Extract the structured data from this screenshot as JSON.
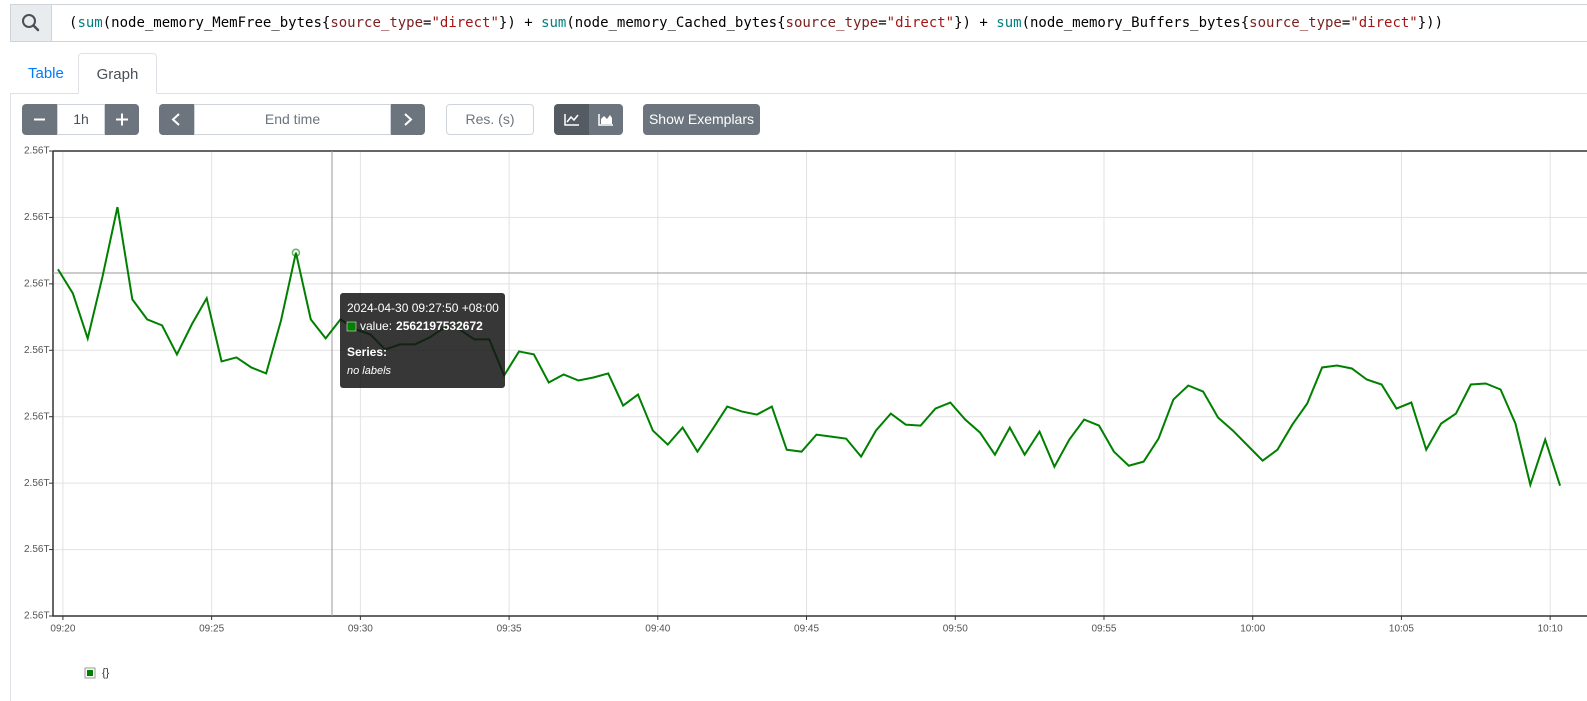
{
  "query": {
    "tokens": [
      {
        "text": "(",
        "color": "#000000"
      },
      {
        "text": "sum",
        "color": "#008080"
      },
      {
        "text": "(node_memory_MemFree_bytes{",
        "color": "#000000"
      },
      {
        "text": "source_type",
        "color": "#7a1f1f"
      },
      {
        "text": "=",
        "color": "#000000"
      },
      {
        "text": "\"direct\"",
        "color": "#a31515"
      },
      {
        "text": "}) + ",
        "color": "#000000"
      },
      {
        "text": "sum",
        "color": "#008080"
      },
      {
        "text": "(node_memory_Cached_bytes{",
        "color": "#000000"
      },
      {
        "text": "source_type",
        "color": "#7a1f1f"
      },
      {
        "text": "=",
        "color": "#000000"
      },
      {
        "text": "\"direct\"",
        "color": "#a31515"
      },
      {
        "text": "}) + ",
        "color": "#000000"
      },
      {
        "text": "sum",
        "color": "#008080"
      },
      {
        "text": "(node_memory_Buffers_bytes{",
        "color": "#000000"
      },
      {
        "text": "source_type",
        "color": "#7a1f1f"
      },
      {
        "text": "=",
        "color": "#000000"
      },
      {
        "text": "\"direct\"",
        "color": "#a31515"
      },
      {
        "text": "}))",
        "color": "#000000"
      }
    ]
  },
  "tabs": [
    "Table",
    "Graph"
  ],
  "controls": {
    "range": "1h",
    "end_time": "End time",
    "resolution": "Res. (s)",
    "exemplars": "Show Exemplars"
  },
  "tooltip": {
    "time": "2024-04-30 09:27:50 +08:00",
    "value_label": "value:",
    "series_label": "Series:",
    "series_value": "no labels"
  },
  "chart_data": {
    "type": "line",
    "x": [
      "09:19:50",
      "09:20:20",
      "09:20:50",
      "09:21:20",
      "09:21:50",
      "09:22:20",
      "09:22:50",
      "09:23:20",
      "09:23:50",
      "09:24:20",
      "09:24:50",
      "09:25:20",
      "09:25:50",
      "09:26:20",
      "09:26:50",
      "09:27:20",
      "09:27:50",
      "09:28:20",
      "09:28:50",
      "09:29:20",
      "09:29:50",
      "09:30:20",
      "09:30:50",
      "09:31:20",
      "09:31:50",
      "09:32:20",
      "09:32:50",
      "09:33:20",
      "09:33:50",
      "09:34:20",
      "09:34:50",
      "09:35:20",
      "09:35:50",
      "09:36:20",
      "09:36:50",
      "09:37:20",
      "09:37:50",
      "09:38:20",
      "09:38:50",
      "09:39:20",
      "09:39:50",
      "09:40:20",
      "09:40:50",
      "09:41:20",
      "09:41:50",
      "09:42:20",
      "09:42:50",
      "09:43:20",
      "09:43:50",
      "09:44:20",
      "09:44:50",
      "09:45:20",
      "09:45:50",
      "09:46:20",
      "09:46:50",
      "09:47:20",
      "09:47:50",
      "09:48:20",
      "09:48:50",
      "09:49:20",
      "09:49:50",
      "09:50:20",
      "09:50:50",
      "09:51:20",
      "09:51:50",
      "09:52:20",
      "09:52:50",
      "09:53:20",
      "09:53:50",
      "09:54:20",
      "09:54:50",
      "09:55:20",
      "09:55:50",
      "09:56:20",
      "09:56:50",
      "09:57:20",
      "09:57:50",
      "09:58:20",
      "09:58:50",
      "09:59:20",
      "09:59:50",
      "10:00:20",
      "10:00:50",
      "10:01:20",
      "10:01:50",
      "10:02:20",
      "10:02:50",
      "10:03:20",
      "10:03:50",
      "10:04:20",
      "10:04:50",
      "10:05:20",
      "10:05:50",
      "10:06:20",
      "10:06:50",
      "10:07:20",
      "10:07:50",
      "10:08:20",
      "10:08:50",
      "10:09:20",
      "10:09:50",
      "10:10:20"
    ],
    "series": [
      {
        "name": "{}",
        "color": "#008000",
        "values": [
          2562177600000,
          2562148600000,
          2562094300000,
          2562169100000,
          2562252400000,
          2562141400000,
          2562117200000,
          2562110000000,
          2562075000000,
          2562111200000,
          2562142600000,
          2562066600000,
          2562071400000,
          2562059300000,
          2562052100000,
          2562116000000,
          2562197532672,
          2562117200000,
          2562094300000,
          2562117200000,
          2562105200000,
          2562099100000,
          2562081000000,
          2562087100000,
          2562087100000,
          2562095500000,
          2562107600000,
          2562105200000,
          2562093100000,
          2562093100000,
          2562049700000,
          2562078600000,
          2562075000000,
          2562041200000,
          2562050900000,
          2562043600000,
          2562047200000,
          2562052100000,
          2562013400000,
          2562026700000,
          2561983300000,
          2561966400000,
          2561986900000,
          2561957900000,
          2561984500000,
          2562012200000,
          2562006200000,
          2562002600000,
          2562012200000,
          2561960300000,
          2561957900000,
          2561978400000,
          2561976000000,
          2561973600000,
          2561951900000,
          2561983300000,
          2562003800000,
          2561990500000,
          2561989300000,
          2562009800000,
          2562017100000,
          2561996600000,
          2561980900000,
          2561954300000,
          2561986900000,
          2561954300000,
          2561982100000,
          2561939800000,
          2561972400000,
          2561996600000,
          2561989300000,
          2561957900000,
          2561941000000,
          2561945900000,
          2561973600000,
          2562020700000,
          2562037600000,
          2562030300000,
          2561999000000,
          2561983300000,
          2561965200000,
          2561947100000,
          2561960300000,
          2561990500000,
          2562015900000,
          2562059300000,
          2562061700000,
          2562058100000,
          2562044800000,
          2562038800000,
          2562009800000,
          2562017100000,
          2561960300000,
          2561991700000,
          2562003800000,
          2562038800000,
          2562040000000,
          2562032800000,
          2561991700000,
          2561918100000,
          2561972400000,
          2561916900000
        ]
      }
    ],
    "xlim": [
      "09:19:40",
      "10:10:36"
    ],
    "xticks": [
      "09:20",
      "09:25",
      "09:30",
      "09:35",
      "09:40",
      "09:45",
      "09:50",
      "09:55",
      "10:00",
      "10:05",
      "10:10"
    ],
    "ylim": [
      2561760000000,
      2562320000000
    ],
    "yticks": [
      {
        "value": 2561760000000,
        "label": "2.56T"
      },
      {
        "value": 2561840000000,
        "label": "2.56T"
      },
      {
        "value": 2561920000000,
        "label": "2.56T"
      },
      {
        "value": 2562000000000,
        "label": "2.56T"
      },
      {
        "value": 2562080000000,
        "label": "2.56T"
      },
      {
        "value": 2562160000000,
        "label": "2.56T"
      },
      {
        "value": 2562240000000,
        "label": "2.56T"
      },
      {
        "value": 2562320000000,
        "label": "2.56T"
      }
    ],
    "grid": true,
    "legend": "bottom-left"
  }
}
